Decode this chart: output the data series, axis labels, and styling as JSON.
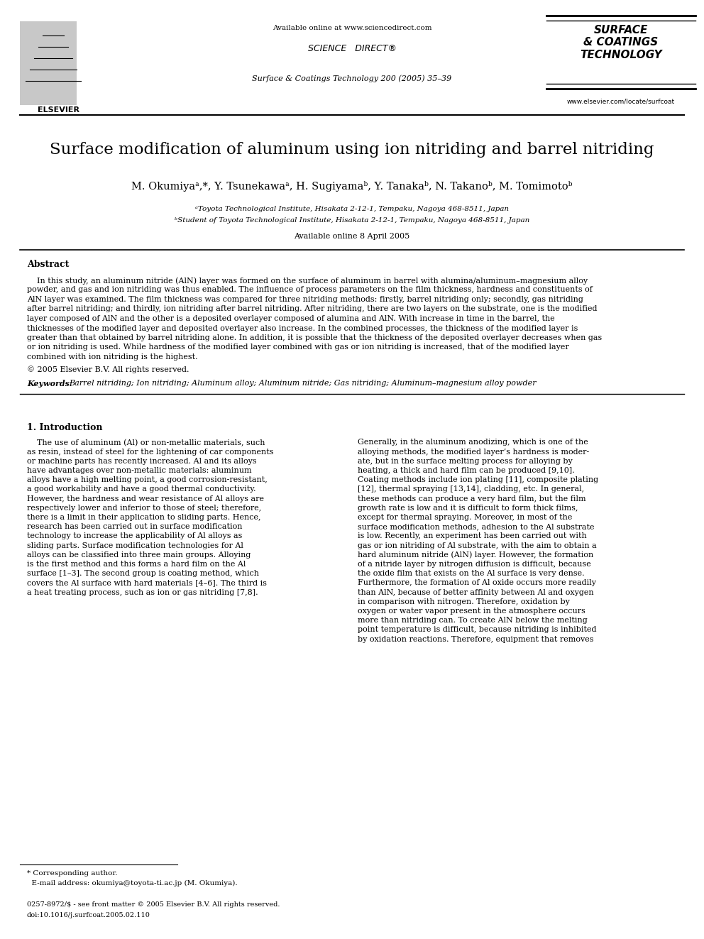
{
  "bg_color": "#ffffff",
  "page_width": 9.92,
  "page_height": 13.23,
  "dpi": 100,
  "header_available": "Available online at www.sciencedirect.com",
  "header_scidir": "SCIENCE   DIRECT®",
  "header_journal": "Surface & Coatings Technology 200 (2005) 35–39",
  "header_website": "www.elsevier.com/locate/surfcoat",
  "header_elsevier": "ELSEVIER",
  "header_journal_logo": "SURFACE\n& COATINGS\nTECHNOLOGY",
  "title": "Surface modification of aluminum using ion nitriding and barrel nitriding",
  "authors": "M. Okumiyaᵃ,*, Y. Tsunekawaᵃ, H. Sugiyamaᵇ, Y. Tanakaᵇ, N. Takanoᵇ, M. Tomimotoᵇ",
  "affil_a": "ᵃToyota Technological Institute, Hisakata 2-12-1, Tempaku, Nagoya 468-8511, Japan",
  "affil_b": "ᵇStudent of Toyota Technological Institute, Hisakata 2-12-1, Tempaku, Nagoya 468-8511, Japan",
  "online_date": "Available online 8 April 2005",
  "abstract_label": "Abstract",
  "abstract_lines": [
    "    In this study, an aluminum nitride (AlN) layer was formed on the surface of aluminum in barrel with alumina/aluminum–magnesium alloy",
    "powder, and gas and ion nitriding was thus enabled. The influence of process parameters on the film thickness, hardness and constituents of",
    "AlN layer was examined. The film thickness was compared for three nitriding methods: firstly, barrel nitriding only; secondly, gas nitriding",
    "after barrel nitriding; and thirdly, ion nitriding after barrel nitriding. After nitriding, there are two layers on the substrate, one is the modified",
    "layer composed of AlN and the other is a deposited overlayer composed of alumina and AlN. With increase in time in the barrel, the",
    "thicknesses of the modified layer and deposited overlayer also increase. In the combined processes, the thickness of the modified layer is",
    "greater than that obtained by barrel nitriding alone. In addition, it is possible that the thickness of the deposited overlayer decreases when gas",
    "or ion nitriding is used. While hardness of the modified layer combined with gas or ion nitriding is increased, that of the modified layer",
    "combined with ion nitriding is the highest."
  ],
  "copyright": "© 2005 Elsevier B.V. All rights reserved.",
  "kw_label": "Keywords:",
  "kw_text": "Barrel nitriding; Ion nitriding; Aluminum alloy; Aluminum nitride; Gas nitriding; Aluminum–magnesium alloy powder",
  "sec1_title": "1. Introduction",
  "sec1_left_lines": [
    "    The use of aluminum (Al) or non-metallic materials, such",
    "as resin, instead of steel for the lightening of car components",
    "or machine parts has recently increased. Al and its alloys",
    "have advantages over non-metallic materials: aluminum",
    "alloys have a high melting point, a good corrosion-resistant,",
    "a good workability and have a good thermal conductivity.",
    "However, the hardness and wear resistance of Al alloys are",
    "respectively lower and inferior to those of steel; therefore,",
    "there is a limit in their application to sliding parts. Hence,",
    "research has been carried out in surface modification",
    "technology to increase the applicability of Al alloys as",
    "sliding parts. Surface modification technologies for Al",
    "alloys can be classified into three main groups. Alloying",
    "is the first method and this forms a hard film on the Al",
    "surface [1–3]. The second group is coating method, which",
    "covers the Al surface with hard materials [4–6]. The third is",
    "a heat treating process, such as ion or gas nitriding [7,8]."
  ],
  "sec1_right_lines": [
    "Generally, in the aluminum anodizing, which is one of the",
    "alloying methods, the modified layer’s hardness is moder-",
    "ate, but in the surface melting process for alloying by",
    "heating, a thick and hard film can be produced [9,10].",
    "Coating methods include ion plating [11], composite plating",
    "[12], thermal spraying [13,14], cladding, etc. In general,",
    "these methods can produce a very hard film, but the film",
    "growth rate is low and it is difficult to form thick films,",
    "except for thermal spraying. Moreover, in most of the",
    "surface modification methods, adhesion to the Al substrate",
    "is low. Recently, an experiment has been carried out with",
    "gas or ion nitriding of Al substrate, with the aim to obtain a",
    "hard aluminum nitride (AlN) layer. However, the formation",
    "of a nitride layer by nitrogen diffusion is difficult, because",
    "the oxide film that exists on the Al surface is very dense.",
    "Furthermore, the formation of Al oxide occurs more readily",
    "than AlN, because of better affinity between Al and oxygen",
    "in comparison with nitrogen. Therefore, oxidation by",
    "oxygen or water vapor present in the atmosphere occurs",
    "more than nitriding can. To create AlN below the melting",
    "point temperature is difficult, because nitriding is inhibited",
    "by oxidation reactions. Therefore, equipment that removes"
  ],
  "footnote_star": "* Corresponding author.",
  "footnote_email": "  E-mail address: okumiya@toyota-ti.ac.jp (M. Okumiya).",
  "footer1": "0257-8972/$ - see front matter © 2005 Elsevier B.V. All rights reserved.",
  "footer2": "doi:10.1016/j.surfcoat.2005.02.110"
}
